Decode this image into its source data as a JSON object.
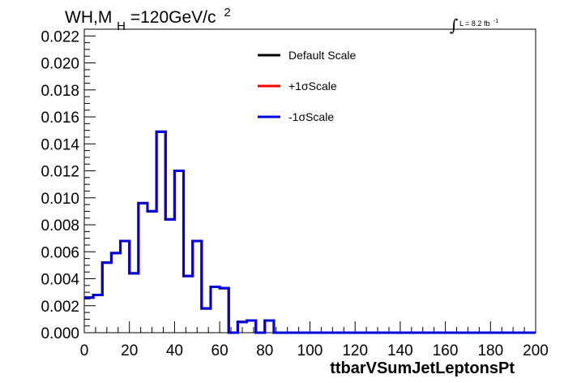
{
  "chart_data": {
    "type": "line",
    "step": true,
    "xlabel": "ttbarVSumJetLeptonsPt",
    "ylabel": "",
    "xlim": [
      0,
      200
    ],
    "ylim": [
      0,
      0.0225
    ],
    "xticks": [
      0,
      20,
      40,
      60,
      80,
      100,
      120,
      140,
      160,
      180,
      200
    ],
    "yticks": [
      0.0,
      0.002,
      0.004,
      0.006,
      0.008,
      0.01,
      0.012,
      0.014,
      0.016,
      0.018,
      0.02,
      0.022
    ],
    "ytick_labels": [
      "0.000",
      "0.002",
      "0.004",
      "0.006",
      "0.008",
      "0.010",
      "0.012",
      "0.014",
      "0.016",
      "0.018",
      "0.020",
      "0.022"
    ],
    "xtick_labels": [
      "0",
      "20",
      "40",
      "60",
      "80",
      "100",
      "120",
      "140",
      "160",
      "180",
      "200"
    ],
    "grid": false,
    "legend_position": "top-center",
    "annotations": {
      "process_main": "WH,M",
      "process_sub": "H",
      "process_rest": "=120GeV/c",
      "process_sup": "2",
      "lumi_integral": "∫",
      "lumi_text": "L = 8.2 fb",
      "lumi_sup": "-1"
    },
    "bin_edges": [
      0,
      4,
      8,
      12,
      16,
      20,
      24,
      28,
      32,
      36,
      40,
      44,
      48,
      52,
      56,
      60,
      64,
      68,
      72,
      76,
      80,
      84,
      88,
      92,
      96,
      100,
      104,
      108,
      112,
      116,
      120,
      124,
      128,
      132,
      136,
      140,
      144,
      148,
      152,
      156,
      160,
      164,
      168,
      172,
      176,
      180,
      184,
      188,
      192,
      196,
      200
    ],
    "series": [
      {
        "name": "Default Scale",
        "color": "#000000",
        "values": [
          0.0026,
          0.0028,
          0.0052,
          0.0059,
          0.0068,
          0.0044,
          0.0096,
          0.009,
          0.0149,
          0.0084,
          0.012,
          0.0042,
          0.0068,
          0.0018,
          0.0034,
          0.0033,
          0.0,
          0.0008,
          0.0009,
          0.0,
          0.0009,
          0.0,
          0,
          0,
          0,
          0,
          0,
          0,
          0,
          0,
          0,
          0,
          0,
          0,
          0,
          0,
          0,
          0,
          0,
          0,
          0,
          0,
          0,
          0,
          0,
          0,
          0,
          0,
          0,
          0
        ]
      },
      {
        "name": "+1σScale",
        "color": "#ff0000",
        "values": [
          0.0026,
          0.0028,
          0.0052,
          0.0059,
          0.0068,
          0.0044,
          0.0096,
          0.009,
          0.0149,
          0.0084,
          0.012,
          0.0042,
          0.0068,
          0.0018,
          0.0034,
          0.0033,
          0.0,
          0.0008,
          0.0009,
          0.0,
          0.0009,
          0.0,
          0,
          0,
          0,
          0,
          0,
          0,
          0,
          0,
          0,
          0,
          0,
          0,
          0,
          0,
          0,
          0,
          0,
          0,
          0,
          0,
          0,
          0,
          0,
          0,
          0,
          0,
          0,
          0
        ]
      },
      {
        "name": "-1σScale",
        "color": "#0000dd",
        "values": [
          0.0026,
          0.0028,
          0.0052,
          0.0059,
          0.0068,
          0.0044,
          0.0096,
          0.009,
          0.0149,
          0.0084,
          0.012,
          0.0042,
          0.0068,
          0.0018,
          0.0034,
          0.0033,
          0.0,
          0.0008,
          0.0009,
          0.0,
          0.0009,
          0.0,
          0,
          0,
          0,
          0,
          0,
          0,
          0,
          0,
          0,
          0,
          0,
          0,
          0,
          0,
          0,
          0,
          0,
          0,
          0,
          0,
          0,
          0,
          0,
          0,
          0,
          0,
          0,
          0
        ]
      }
    ]
  }
}
